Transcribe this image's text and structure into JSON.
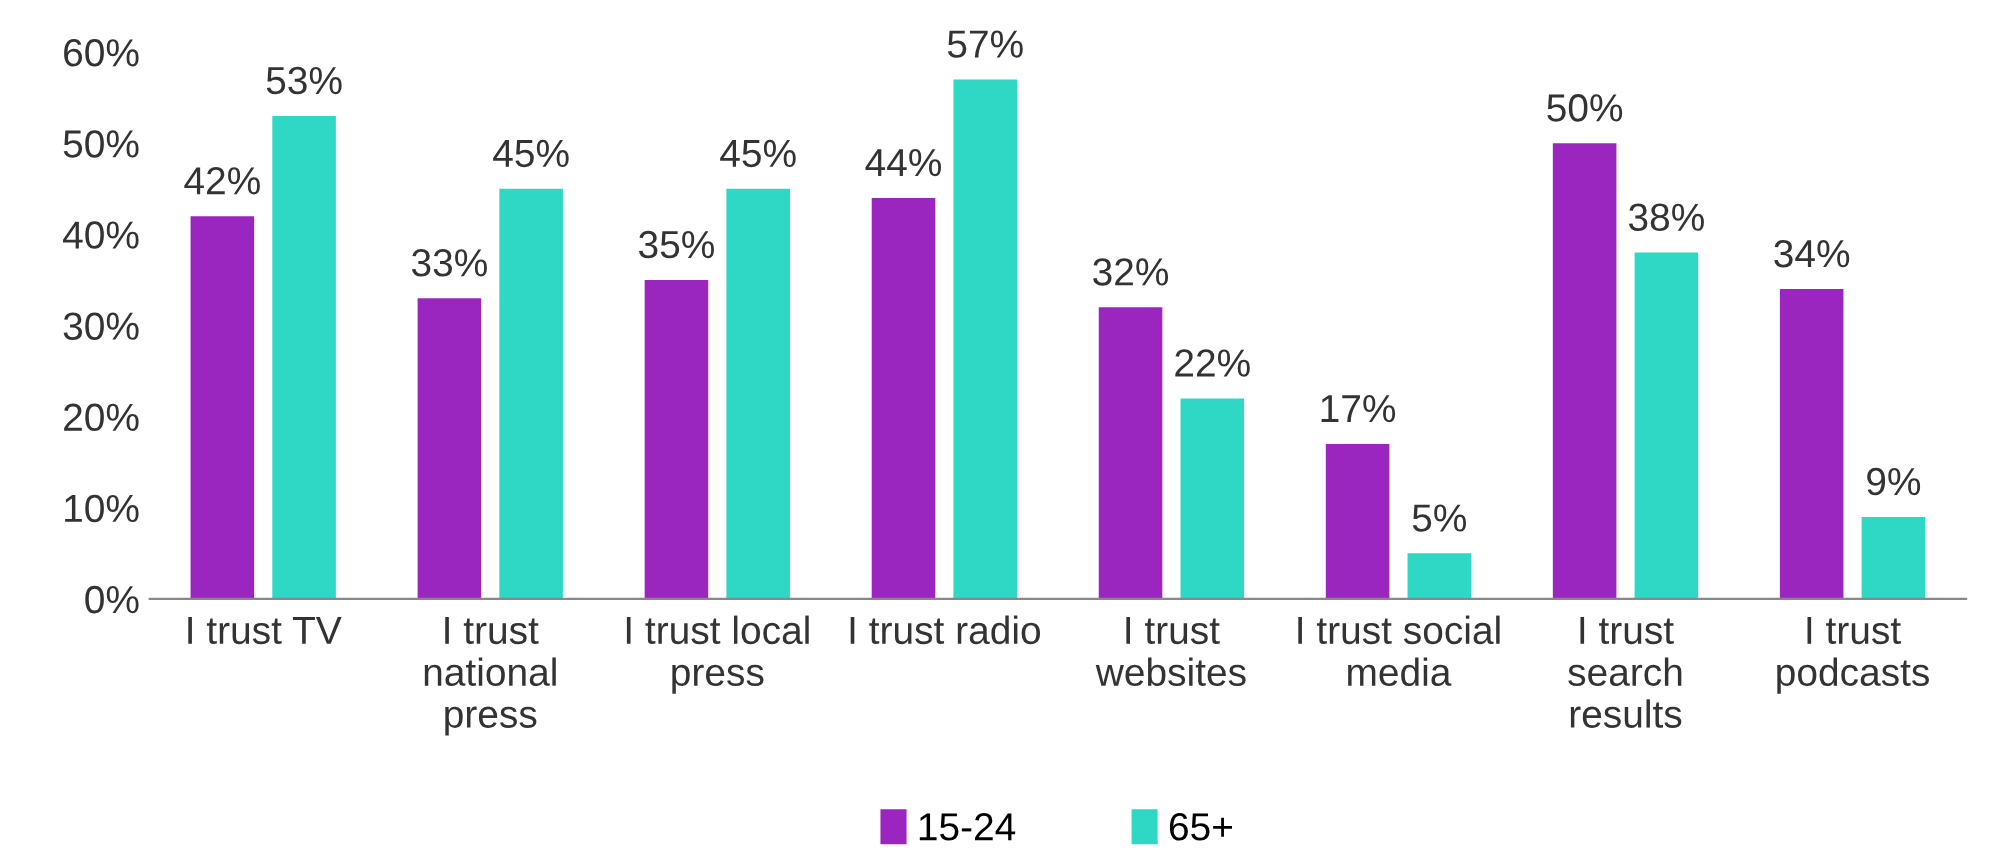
{
  "chart_data": {
    "type": "bar",
    "categories": [
      "I trust TV",
      "I trust\nnational\npress",
      "I trust local\npress",
      "I trust radio",
      "I trust\nwebsites",
      "I trust social\nmedia",
      "I trust\nsearch\nresults",
      "I trust\npodcasts"
    ],
    "series": [
      {
        "name": "15-24",
        "color": "#9b26bf",
        "values": [
          42,
          33,
          35,
          44,
          32,
          17,
          50,
          34
        ],
        "value_labels": [
          "42%",
          "33%",
          "35%",
          "44%",
          "32%",
          "17%",
          "50%",
          "34%"
        ]
      },
      {
        "name": "65+",
        "color": "#2fd8c4",
        "values": [
          53,
          45,
          45,
          57,
          22,
          5,
          38,
          9
        ],
        "value_labels": [
          "53%",
          "45%",
          "45%",
          "57%",
          "22%",
          "5%",
          "38%",
          "9%"
        ]
      }
    ],
    "ylim": [
      0,
      60
    ],
    "yticks": [
      {
        "value": 0,
        "label": "0%"
      },
      {
        "value": 10,
        "label": "10%"
      },
      {
        "value": 20,
        "label": "20%"
      },
      {
        "value": 30,
        "label": "30%"
      },
      {
        "value": 40,
        "label": "40%"
      },
      {
        "value": 50,
        "label": "50%"
      },
      {
        "value": 60,
        "label": "60%"
      }
    ],
    "grid": false,
    "legend": "bottom"
  }
}
